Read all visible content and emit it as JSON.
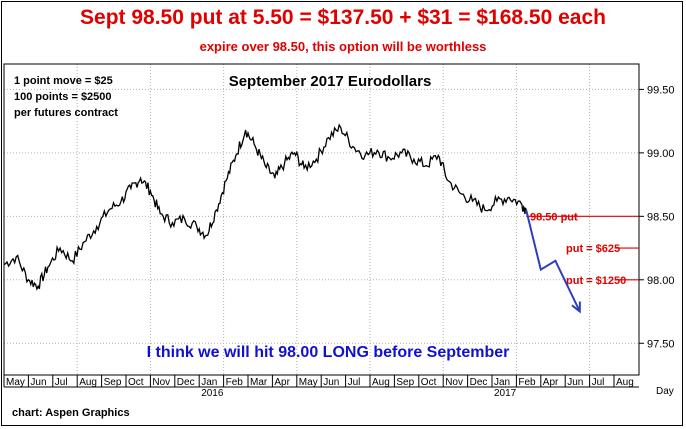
{
  "headline": "Sept 98.50 put at 5.50 = $137.50 + $31 = $168.50 each",
  "subheadline": "expire over 98.50, this option will be worthless",
  "source": "chart: Aspen Graphics",
  "colors": {
    "headline": "#e00000",
    "comment": "#1010d0",
    "price": "#000000",
    "projection": "#2b3fbf",
    "levels": "#e00000",
    "grid": "#b0b0b0"
  },
  "chart_data": {
    "type": "line",
    "title": "September 2017 Eurodollars",
    "notes": [
      "1 point move = $25",
      "100 points = $2500",
      "per futures contract"
    ],
    "comment": "I think we will hit 98.00 LONG before September",
    "ylim": [
      97.25,
      99.7
    ],
    "yticks": [
      "99.50",
      "99.00",
      "98.50",
      "98.00",
      "97.50"
    ],
    "x_months": [
      "May",
      "Jun",
      "Jul",
      "Aug",
      "Sep",
      "Oct",
      "Nov",
      "Dec",
      "Jan",
      "Feb",
      "Mar",
      "Apr",
      "May",
      "Jun",
      "Jul",
      "Aug",
      "Sep",
      "Oct",
      "Nov",
      "Dec",
      "Jan",
      "Feb",
      "Apr",
      "Jun",
      "Jul",
      "Aug"
    ],
    "x_years": [
      {
        "label": "2016",
        "at_month": 8
      },
      {
        "label": "2017",
        "at_month": 20
      }
    ],
    "x_axis_label": "Day",
    "grid": true,
    "series": [
      {
        "values": [
          {
            "x": 0,
            "y": 98.12
          },
          {
            "x": 0.5,
            "y": 98.18
          },
          {
            "x": 1,
            "y": 98.0
          },
          {
            "x": 1.4,
            "y": 97.95
          },
          {
            "x": 1.8,
            "y": 98.1
          },
          {
            "x": 2.3,
            "y": 98.25
          },
          {
            "x": 2.8,
            "y": 98.15
          },
          {
            "x": 3.3,
            "y": 98.3
          },
          {
            "x": 3.8,
            "y": 98.42
          },
          {
            "x": 4.3,
            "y": 98.55
          },
          {
            "x": 4.8,
            "y": 98.62
          },
          {
            "x": 5.2,
            "y": 98.72
          },
          {
            "x": 5.6,
            "y": 98.8
          },
          {
            "x": 6.0,
            "y": 98.7
          },
          {
            "x": 6.4,
            "y": 98.52
          },
          {
            "x": 6.9,
            "y": 98.45
          },
          {
            "x": 7.4,
            "y": 98.48
          },
          {
            "x": 7.9,
            "y": 98.42
          },
          {
            "x": 8.3,
            "y": 98.35
          },
          {
            "x": 8.7,
            "y": 98.55
          },
          {
            "x": 9.1,
            "y": 98.78
          },
          {
            "x": 9.5,
            "y": 98.98
          },
          {
            "x": 9.9,
            "y": 99.18
          },
          {
            "x": 10.3,
            "y": 99.05
          },
          {
            "x": 10.7,
            "y": 98.9
          },
          {
            "x": 11.1,
            "y": 98.8
          },
          {
            "x": 11.5,
            "y": 98.92
          },
          {
            "x": 11.9,
            "y": 99.0
          },
          {
            "x": 12.3,
            "y": 98.88
          },
          {
            "x": 12.8,
            "y": 98.95
          },
          {
            "x": 13.3,
            "y": 99.12
          },
          {
            "x": 13.8,
            "y": 99.2
          },
          {
            "x": 14.3,
            "y": 99.05
          },
          {
            "x": 14.8,
            "y": 98.98
          },
          {
            "x": 15.3,
            "y": 99.02
          },
          {
            "x": 15.8,
            "y": 98.96
          },
          {
            "x": 16.3,
            "y": 99.0
          },
          {
            "x": 16.8,
            "y": 98.95
          },
          {
            "x": 17.3,
            "y": 98.9
          },
          {
            "x": 17.8,
            "y": 98.98
          },
          {
            "x": 18.2,
            "y": 98.78
          },
          {
            "x": 18.7,
            "y": 98.68
          },
          {
            "x": 19.2,
            "y": 98.62
          },
          {
            "x": 19.7,
            "y": 98.55
          },
          {
            "x": 20.2,
            "y": 98.62
          },
          {
            "x": 20.7,
            "y": 98.65
          },
          {
            "x": 21.2,
            "y": 98.6
          },
          {
            "x": 21.4,
            "y": 98.55
          }
        ]
      }
    ],
    "projection": [
      {
        "x": 21.4,
        "y": 98.55
      },
      {
        "x": 22.0,
        "y": 98.08
      },
      {
        "x": 22.6,
        "y": 98.15
      },
      {
        "x": 23.6,
        "y": 97.75
      }
    ],
    "levels": [
      {
        "label": "98.50 put",
        "y": 98.5
      },
      {
        "label": "put = $625",
        "y": 98.25
      },
      {
        "label": "put = $1250",
        "y": 98.0
      }
    ]
  }
}
